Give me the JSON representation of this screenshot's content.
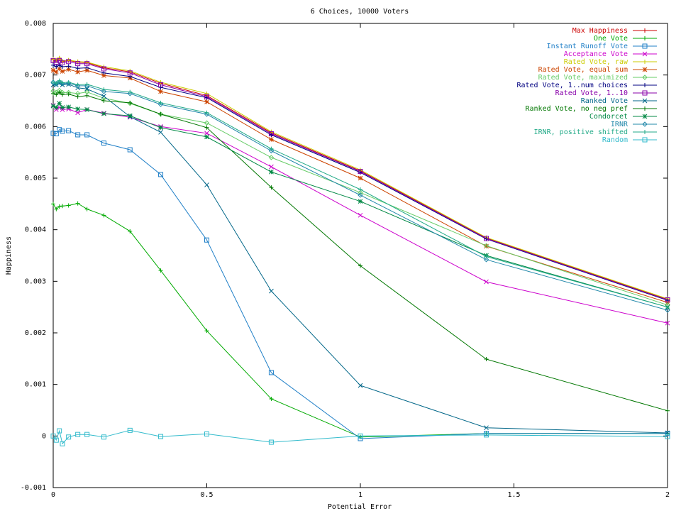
{
  "chart_data": {
    "type": "line",
    "title": "6 Choices, 10000 Voters",
    "xlabel": "Potential Error",
    "ylabel": "Happiness",
    "xlim": [
      0,
      2
    ],
    "ylim": [
      -0.001,
      0.008
    ],
    "xticks": [
      0,
      0.5,
      1,
      1.5,
      2
    ],
    "xtick_labels": [
      "0",
      "0.5",
      "1",
      "1.5",
      "2"
    ],
    "yticks": [
      -0.001,
      0,
      0.001,
      0.002,
      0.003,
      0.004,
      0.005,
      0.006,
      0.007,
      0.008
    ],
    "ytick_labels": [
      "-0.001",
      "0",
      "0.001",
      "0.002",
      "0.003",
      "0.004",
      "0.005",
      "0.006",
      "0.007",
      "0.008"
    ],
    "grid": false,
    "legend_position": "top-right",
    "x": [
      0,
      0.01,
      0.02,
      0.03,
      0.05,
      0.08,
      0.11,
      0.165,
      0.25,
      0.35,
      0.5,
      0.71,
      1.0,
      1.41,
      2.0
    ],
    "series": [
      {
        "name": "Max Happiness",
        "color": "#cc0000",
        "marker": "plus",
        "values": [
          0.0073,
          0.00728,
          0.00732,
          0.00726,
          0.00728,
          0.00725,
          0.00724,
          0.00714,
          0.00706,
          0.00684,
          0.0066,
          0.00588,
          0.00514,
          0.00384,
          0.00265
        ]
      },
      {
        "name": "One Vote",
        "color": "#00aa00",
        "marker": "plus",
        "values": [
          0.0045,
          0.0044,
          0.00445,
          0.00446,
          0.00447,
          0.00451,
          0.0044,
          0.00428,
          0.00397,
          0.00321,
          0.00204,
          0.00072,
          -2e-05,
          5e-05,
          5e-05
        ]
      },
      {
        "name": "Instant Runoff Vote",
        "color": "#1f7fc7",
        "marker": "square",
        "values": [
          0.00587,
          0.00586,
          0.00594,
          0.00591,
          0.00592,
          0.00584,
          0.00584,
          0.00568,
          0.00555,
          0.00507,
          0.0038,
          0.00123,
          -5e-05,
          5e-05,
          5e-05
        ]
      },
      {
        "name": "Acceptance Vote",
        "color": "#cc00cc",
        "marker": "x",
        "values": [
          0.00641,
          0.00633,
          0.00637,
          0.00633,
          0.00634,
          0.00627,
          0.00633,
          0.00626,
          0.00618,
          0.006,
          0.00587,
          0.00522,
          0.00428,
          0.00299,
          0.00219
        ]
      },
      {
        "name": "Rated Vote, raw",
        "color": "#cccc00",
        "marker": "plus",
        "values": [
          0.00731,
          0.00729,
          0.00733,
          0.00727,
          0.00729,
          0.00726,
          0.00725,
          0.00716,
          0.00708,
          0.00686,
          0.00664,
          0.0059,
          0.00516,
          0.00385,
          0.00266
        ]
      },
      {
        "name": "Rated Vote, equal sum",
        "color": "#cc4400",
        "marker": "star",
        "values": [
          0.00709,
          0.00706,
          0.00712,
          0.00707,
          0.00711,
          0.00706,
          0.00709,
          0.00699,
          0.00694,
          0.00668,
          0.00648,
          0.00575,
          0.005,
          0.00368,
          0.00259
        ]
      },
      {
        "name": "Rated Vote, maximized",
        "color": "#66cc66",
        "marker": "diamond",
        "values": [
          0.00669,
          0.00666,
          0.0067,
          0.00666,
          0.00666,
          0.00664,
          0.00667,
          0.00655,
          0.00645,
          0.00624,
          0.00607,
          0.0054,
          0.00472,
          0.00369,
          0.00254
        ]
      },
      {
        "name": "Rated Vote, 1..num choices",
        "color": "#000080",
        "marker": "plus",
        "values": [
          0.00719,
          0.00716,
          0.00719,
          0.00716,
          0.00717,
          0.00713,
          0.00714,
          0.00704,
          0.00697,
          0.00676,
          0.00656,
          0.00584,
          0.00511,
          0.00382,
          0.00263
        ]
      },
      {
        "name": "Rated Vote, 1..10",
        "color": "#8800aa",
        "marker": "square",
        "values": [
          0.00728,
          0.00725,
          0.00728,
          0.00724,
          0.00726,
          0.00722,
          0.00722,
          0.00712,
          0.00704,
          0.00681,
          0.00658,
          0.00586,
          0.00513,
          0.00383,
          0.00264
        ]
      },
      {
        "name": "Ranked Vote",
        "color": "#006688",
        "marker": "x",
        "values": [
          0.00681,
          0.00681,
          0.00684,
          0.00681,
          0.00682,
          0.00675,
          0.00673,
          0.00659,
          0.00619,
          0.00589,
          0.00487,
          0.00281,
          0.00098,
          0.00016,
          6e-05
        ]
      },
      {
        "name": "Ranked Vote, no neg pref",
        "color": "#007700",
        "marker": "plus",
        "values": [
          0.00664,
          0.00662,
          0.00666,
          0.00662,
          0.00663,
          0.00658,
          0.0066,
          0.0065,
          0.00646,
          0.00624,
          0.00598,
          0.00482,
          0.0033,
          0.00149,
          0.00049
        ]
      },
      {
        "name": "Condorcet",
        "color": "#008844",
        "marker": "star",
        "values": [
          0.0064,
          0.00637,
          0.00645,
          0.00637,
          0.00638,
          0.00634,
          0.00633,
          0.00625,
          0.00621,
          0.00598,
          0.0058,
          0.00512,
          0.00455,
          0.0035,
          0.0025
        ]
      },
      {
        "name": "IRNR",
        "color": "#2288aa",
        "marker": "diamond",
        "values": [
          0.00686,
          0.00683,
          0.00686,
          0.00683,
          0.00684,
          0.00679,
          0.00679,
          0.00668,
          0.00664,
          0.00643,
          0.00624,
          0.00553,
          0.00467,
          0.00342,
          0.00244
        ]
      },
      {
        "name": "IRNR, positive shifted",
        "color": "#22aa88",
        "marker": "plus",
        "values": [
          0.00686,
          0.00684,
          0.00689,
          0.00685,
          0.00686,
          0.00681,
          0.00682,
          0.00672,
          0.00667,
          0.00646,
          0.00627,
          0.00557,
          0.00478,
          0.00348,
          0.0025
        ]
      },
      {
        "name": "Random",
        "color": "#33bbcc",
        "marker": "square",
        "values": [
          0.0,
          -8e-05,
          0.0001,
          -0.00015,
          -2e-05,
          3e-05,
          3e-05,
          -2e-05,
          0.00011,
          -1e-05,
          4e-05,
          -0.00012,
          0.0,
          2e-05,
          -1e-05
        ]
      }
    ]
  }
}
